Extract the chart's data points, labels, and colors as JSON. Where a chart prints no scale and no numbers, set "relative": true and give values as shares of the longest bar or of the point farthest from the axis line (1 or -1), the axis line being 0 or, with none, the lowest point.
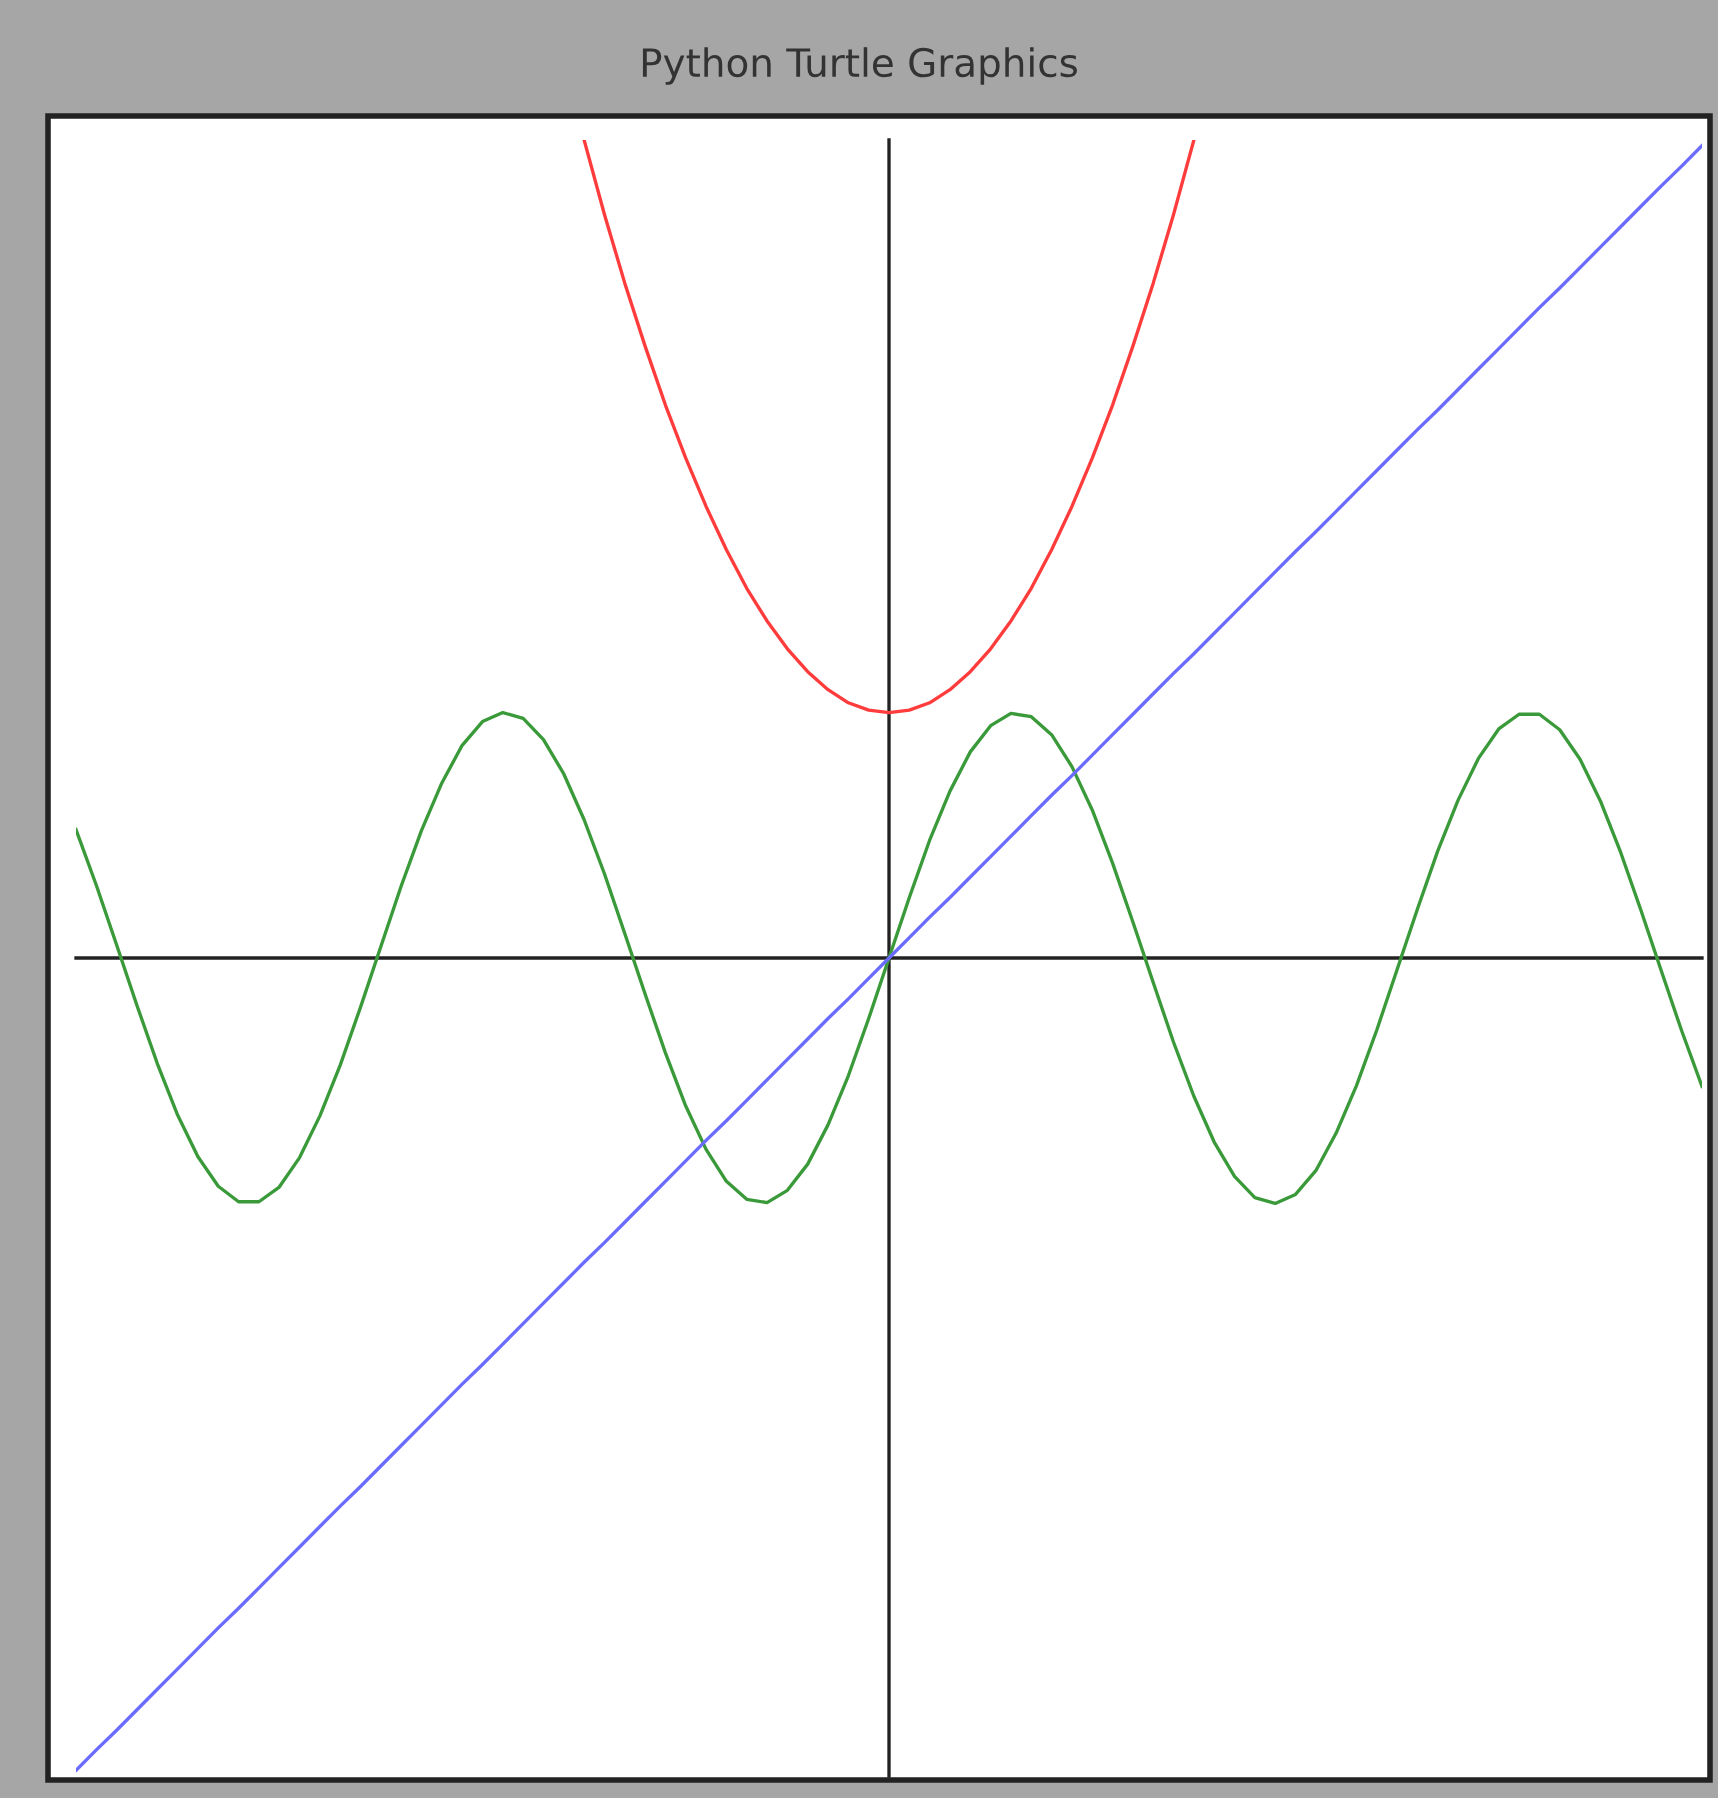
{
  "chart_data": {
    "type": "line",
    "title": "Python Turtle Graphics",
    "relative": true,
    "categories": [
      null,
      null,
      null,
      null,
      null,
      null,
      null,
      null,
      null,
      null,
      null,
      null,
      null,
      null,
      null,
      null,
      null,
      null,
      null,
      null,
      null,
      null,
      null,
      null,
      null,
      null,
      null,
      null,
      null,
      null,
      null,
      null,
      null,
      null,
      null,
      null,
      null,
      null,
      null,
      null,
      null,
      null,
      null,
      null,
      null,
      null,
      null,
      null,
      null,
      null,
      null,
      null,
      null,
      null,
      null,
      null,
      null,
      null,
      null,
      null,
      null,
      null,
      null,
      null,
      null,
      null,
      null,
      null,
      null,
      null,
      null,
      null,
      null,
      null,
      null,
      null,
      null,
      null,
      null,
      null,
      null
    ],
    "series": [
      {
        "color": "#ff3c3c",
        "values": [
          null,
          null,
          null,
          null,
          null,
          null,
          null,
          null,
          null,
          null,
          null,
          null,
          null,
          null,
          null,
          null,
          null,
          null,
          null,
          null,
          null,
          null,
          null,
          null,
          null,
          1.0,
          0.909,
          0.825,
          0.748,
          0.676,
          0.611,
          0.552,
          0.499,
          0.452,
          0.412,
          0.378,
          0.35,
          0.328,
          0.312,
          0.303,
          0.3,
          0.303,
          0.312,
          0.328,
          0.35,
          0.378,
          0.412,
          0.452,
          0.499,
          0.552,
          0.611,
          0.676,
          0.748,
          0.825,
          0.909,
          1.0,
          null,
          null,
          null,
          null,
          null,
          null,
          null,
          null,
          null,
          null,
          null,
          null,
          null,
          null,
          null,
          null,
          null,
          null,
          null,
          null,
          null,
          null,
          null,
          null,
          null
        ]
      },
      {
        "color": "#3a9a3a",
        "values": [
          0.157,
          0.089,
          0.016,
          -0.058,
          -0.129,
          -0.192,
          -0.243,
          -0.279,
          -0.298,
          -0.298,
          -0.28,
          -0.244,
          -0.193,
          -0.131,
          -0.06,
          0.014,
          0.088,
          0.156,
          0.214,
          0.26,
          0.289,
          0.3,
          0.293,
          0.267,
          0.225,
          0.169,
          0.103,
          0.03,
          -0.044,
          -0.116,
          -0.181,
          -0.234,
          -0.273,
          -0.295,
          -0.299,
          -0.284,
          -0.252,
          -0.204,
          -0.144,
          -0.074,
          0,
          0.074,
          0.144,
          0.204,
          0.252,
          0.284,
          0.299,
          0.295,
          0.273,
          0.234,
          0.181,
          0.116,
          0.044,
          -0.03,
          -0.103,
          -0.169,
          -0.225,
          -0.267,
          -0.293,
          -0.3,
          -0.289,
          -0.26,
          -0.214,
          -0.156,
          -0.088,
          -0.014,
          0.06,
          0.131,
          0.193,
          0.244,
          0.28,
          0.298,
          0.298,
          0.279,
          0.243,
          0.192,
          0.129,
          0.058,
          -0.016,
          -0.089,
          -0.157
        ]
      },
      {
        "color": "#6b6bff",
        "values": [
          -0.993,
          -0.968,
          -0.944,
          -0.919,
          -0.894,
          -0.869,
          -0.844,
          -0.819,
          -0.795,
          -0.77,
          -0.745,
          -0.72,
          -0.695,
          -0.67,
          -0.646,
          -0.621,
          -0.596,
          -0.571,
          -0.546,
          -0.521,
          -0.497,
          -0.472,
          -0.447,
          -0.422,
          -0.397,
          -0.372,
          -0.348,
          -0.323,
          -0.298,
          -0.273,
          -0.248,
          -0.223,
          -0.199,
          -0.174,
          -0.149,
          -0.124,
          -0.099,
          -0.074,
          -0.05,
          -0.025,
          0,
          0.025,
          0.05,
          0.074,
          0.099,
          0.124,
          0.149,
          0.174,
          0.199,
          0.223,
          0.248,
          0.273,
          0.298,
          0.323,
          0.348,
          0.372,
          0.397,
          0.422,
          0.447,
          0.472,
          0.497,
          0.521,
          0.546,
          0.571,
          0.596,
          0.621,
          0.646,
          0.67,
          0.695,
          0.72,
          0.745,
          0.77,
          0.795,
          0.819,
          0.844,
          0.869,
          0.894,
          0.919,
          0.944,
          0.968,
          0.993
        ]
      }
    ]
  }
}
